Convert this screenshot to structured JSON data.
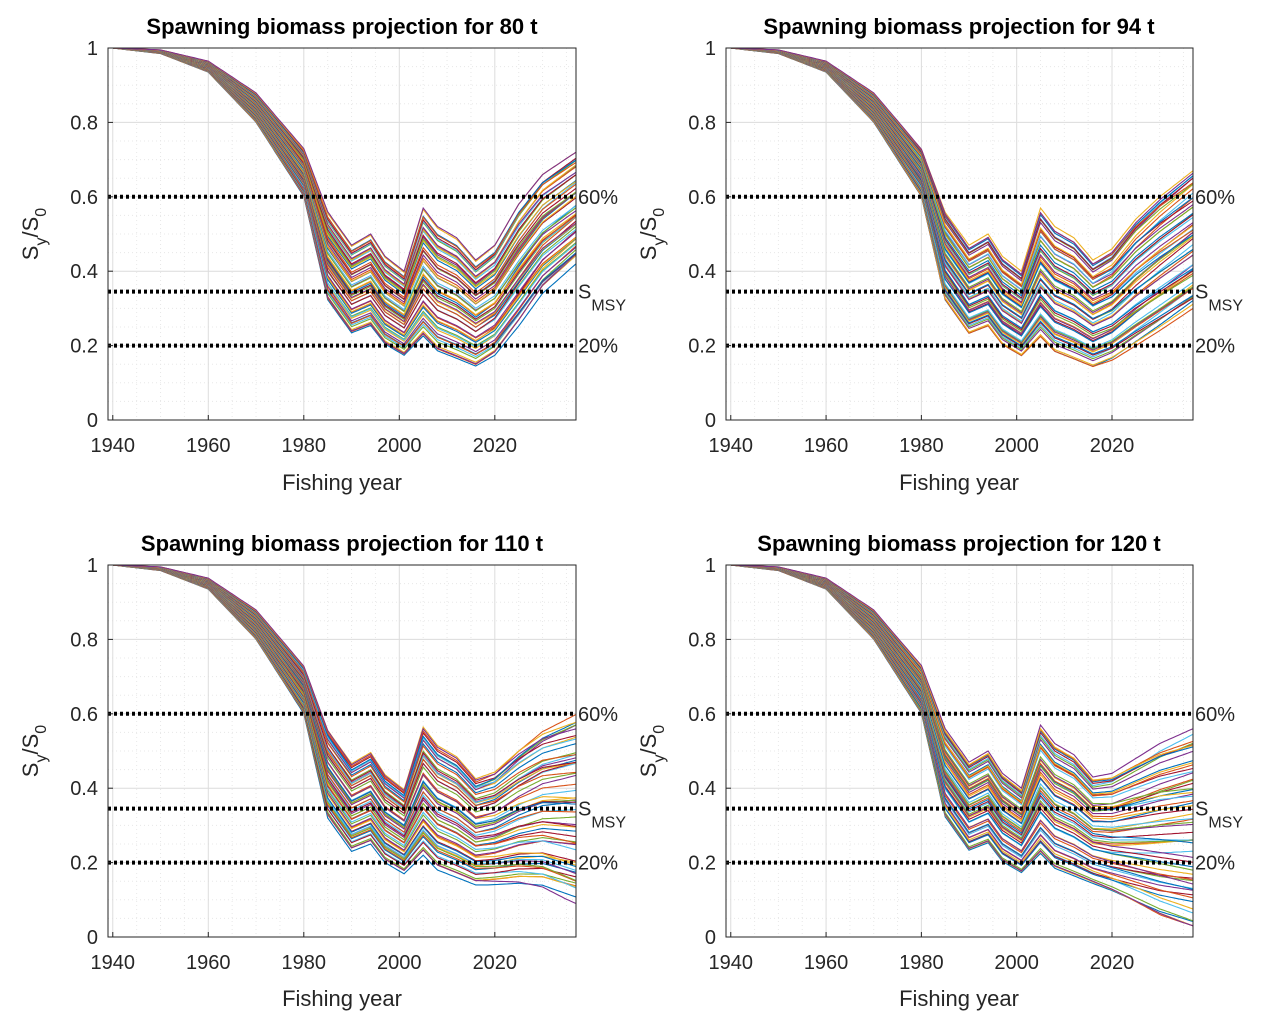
{
  "chart_data": [
    {
      "type": "line",
      "title": "Spawning biomass projection for 80 t",
      "xlabel": "Fishing year",
      "ylabel": "S_y/S_0",
      "xlim": [
        1939,
        2037
      ],
      "ylim": [
        0,
        1
      ],
      "xticks": [
        1940,
        1960,
        1980,
        2000,
        2020
      ],
      "yticks": [
        0,
        0.2,
        0.4,
        0.6,
        0.8,
        1
      ],
      "grid": true,
      "reference_lines": [
        {
          "y": 0.6,
          "label": "60%"
        },
        {
          "y": 0.345,
          "label": "S",
          "subscript": "MSY"
        },
        {
          "y": 0.2,
          "label": "20%"
        }
      ],
      "series_count": 60,
      "envelope": {
        "x": [
          1940,
          1950,
          1960,
          1970,
          1980,
          1985,
          1990,
          1994,
          1997,
          2001,
          2005,
          2008,
          2012,
          2016,
          2020,
          2025,
          2030,
          2037
        ],
        "high": [
          1.0,
          0.995,
          0.965,
          0.88,
          0.73,
          0.56,
          0.47,
          0.5,
          0.44,
          0.4,
          0.57,
          0.52,
          0.49,
          0.43,
          0.47,
          0.58,
          0.66,
          0.72
        ],
        "low": [
          1.0,
          0.985,
          0.935,
          0.8,
          0.6,
          0.32,
          0.23,
          0.25,
          0.2,
          0.17,
          0.22,
          0.18,
          0.16,
          0.14,
          0.17,
          0.25,
          0.34,
          0.42
        ]
      }
    },
    {
      "type": "line",
      "title": "Spawning biomass projection for 94 t",
      "xlabel": "Fishing year",
      "ylabel": "S_y/S_0",
      "xlim": [
        1939,
        2037
      ],
      "ylim": [
        0,
        1
      ],
      "xticks": [
        1940,
        1960,
        1980,
        2000,
        2020
      ],
      "yticks": [
        0,
        0.2,
        0.4,
        0.6,
        0.8,
        1
      ],
      "grid": true,
      "reference_lines": [
        {
          "y": 0.6,
          "label": "60%"
        },
        {
          "y": 0.345,
          "label": "S",
          "subscript": "MSY"
        },
        {
          "y": 0.2,
          "label": "20%"
        }
      ],
      "series_count": 60,
      "envelope": {
        "x": [
          1940,
          1950,
          1960,
          1970,
          1980,
          1985,
          1990,
          1994,
          1997,
          2001,
          2005,
          2008,
          2012,
          2016,
          2020,
          2025,
          2030,
          2037
        ],
        "high": [
          1.0,
          0.995,
          0.965,
          0.88,
          0.73,
          0.56,
          0.47,
          0.5,
          0.44,
          0.4,
          0.57,
          0.52,
          0.49,
          0.43,
          0.46,
          0.54,
          0.6,
          0.67
        ],
        "low": [
          1.0,
          0.985,
          0.935,
          0.8,
          0.6,
          0.32,
          0.23,
          0.25,
          0.2,
          0.17,
          0.22,
          0.18,
          0.16,
          0.14,
          0.16,
          0.2,
          0.24,
          0.3
        ]
      }
    },
    {
      "type": "line",
      "title": "Spawning biomass projection for 110 t",
      "xlabel": "Fishing year",
      "ylabel": "S_y/S_0",
      "xlim": [
        1939,
        2037
      ],
      "ylim": [
        0,
        1
      ],
      "xticks": [
        1940,
        1960,
        1980,
        2000,
        2020
      ],
      "yticks": [
        0,
        0.2,
        0.4,
        0.6,
        0.8,
        1
      ],
      "grid": true,
      "reference_lines": [
        {
          "y": 0.6,
          "label": "60%"
        },
        {
          "y": 0.345,
          "label": "S",
          "subscript": "MSY"
        },
        {
          "y": 0.2,
          "label": "20%"
        }
      ],
      "series_count": 60,
      "envelope": {
        "x": [
          1940,
          1950,
          1960,
          1970,
          1980,
          1985,
          1990,
          1994,
          1997,
          2001,
          2005,
          2008,
          2012,
          2016,
          2020,
          2025,
          2030,
          2037
        ],
        "high": [
          1.0,
          0.995,
          0.965,
          0.88,
          0.73,
          0.56,
          0.47,
          0.5,
          0.44,
          0.4,
          0.57,
          0.52,
          0.49,
          0.43,
          0.45,
          0.51,
          0.56,
          0.6
        ],
        "low": [
          1.0,
          0.985,
          0.935,
          0.8,
          0.6,
          0.32,
          0.23,
          0.25,
          0.2,
          0.17,
          0.22,
          0.18,
          0.16,
          0.14,
          0.14,
          0.14,
          0.13,
          0.09
        ]
      }
    },
    {
      "type": "line",
      "title": "Spawning biomass projection for 120 t",
      "xlabel": "Fishing year",
      "ylabel": "S_y/S_0",
      "xlim": [
        1939,
        2037
      ],
      "ylim": [
        0,
        1
      ],
      "xticks": [
        1940,
        1960,
        1980,
        2000,
        2020
      ],
      "yticks": [
        0,
        0.2,
        0.4,
        0.6,
        0.8,
        1
      ],
      "grid": true,
      "reference_lines": [
        {
          "y": 0.6,
          "label": "60%"
        },
        {
          "y": 0.345,
          "label": "S",
          "subscript": "MSY"
        },
        {
          "y": 0.2,
          "label": "20%"
        }
      ],
      "series_count": 60,
      "envelope": {
        "x": [
          1940,
          1950,
          1960,
          1970,
          1980,
          1985,
          1990,
          1994,
          1997,
          2001,
          2005,
          2008,
          2012,
          2016,
          2020,
          2025,
          2030,
          2037
        ],
        "high": [
          1.0,
          0.995,
          0.965,
          0.88,
          0.73,
          0.56,
          0.47,
          0.5,
          0.44,
          0.4,
          0.57,
          0.52,
          0.49,
          0.43,
          0.44,
          0.48,
          0.52,
          0.56
        ],
        "low": [
          1.0,
          0.985,
          0.935,
          0.8,
          0.6,
          0.32,
          0.23,
          0.25,
          0.2,
          0.17,
          0.22,
          0.18,
          0.16,
          0.14,
          0.12,
          0.09,
          0.06,
          0.03
        ]
      }
    }
  ],
  "colors": {
    "series_palette": [
      "#0072bd",
      "#d95319",
      "#edb120",
      "#7e2f8e",
      "#77ac30",
      "#4dbeee",
      "#a2142f"
    ],
    "reference_line": "#000000",
    "grid": "#dcdcdc",
    "axis": "#262626"
  }
}
